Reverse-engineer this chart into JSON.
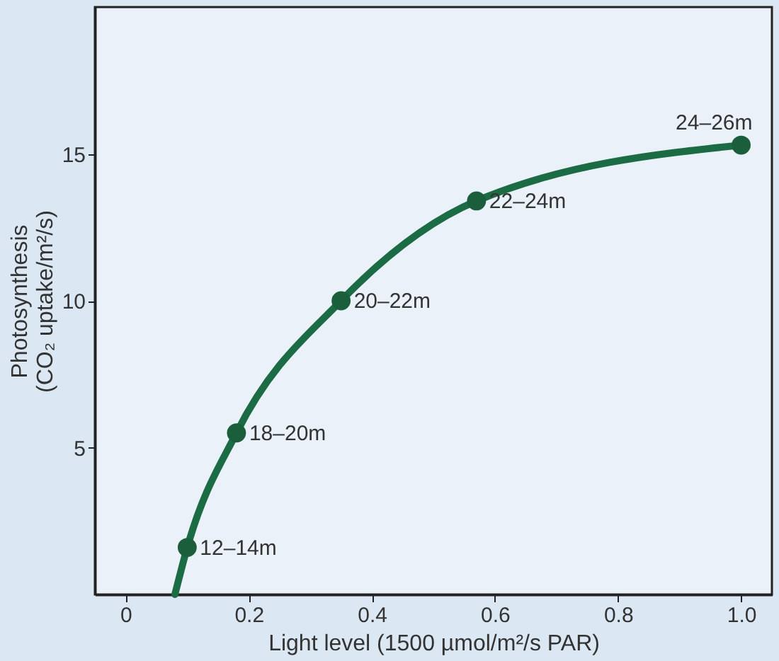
{
  "chart_data": {
    "type": "line",
    "xlabel": "Light level (1500 µmol/m²/s PAR)",
    "ylabel": "Photosynthesis\n(CO₂ uptake/m²/s)",
    "series": [
      {
        "color": "#1b6b45",
        "x": [
          0.08,
          0.1,
          0.18,
          0.35,
          0.57,
          1.0
        ],
        "values": [
          0,
          1.6,
          5.5,
          10,
          13.4,
          15.3
        ],
        "marker": "none"
      },
      {
        "type": "scatter",
        "color": "#1b5e3c",
        "x": [
          0.1,
          0.18,
          0.35,
          0.57,
          1.0
        ],
        "values": [
          1.6,
          5.5,
          10,
          13.4,
          15.3
        ],
        "marker": "circle"
      }
    ],
    "annotations": [
      {
        "text": "12–14m",
        "x": 0.1,
        "y": 1.6
      },
      {
        "text": "18–20m",
        "x": 0.18,
        "y": 5.5
      },
      {
        "text": "20–22m",
        "x": 0.35,
        "y": 10
      },
      {
        "text": "22–24m",
        "x": 0.57,
        "y": 13.4
      },
      {
        "text": "24–26m",
        "x": 1.0,
        "y": 15.3
      }
    ],
    "xlim": [
      -0.05,
      1.05
    ],
    "ylim": [
      0,
      20
    ],
    "xticks": [
      0,
      0.2,
      0.4,
      0.6,
      0.8,
      {
        "value": 1,
        "label": "1.0"
      }
    ],
    "yticks": [
      5,
      10,
      15
    ],
    "grid": false
  }
}
